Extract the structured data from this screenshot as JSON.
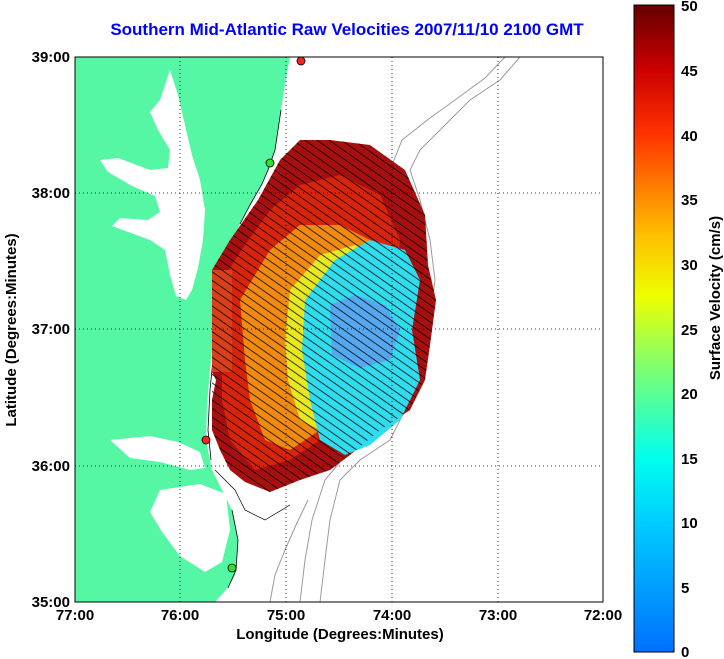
{
  "title": "Southern Mid-Atlantic Raw Velocities 2007/11/10 2100 GMT",
  "x_axis": {
    "label": "Longitude (Degrees:Minutes)",
    "ticks": [
      "77:00",
      "76:00",
      "75:00",
      "74:00",
      "73:00",
      "72:00"
    ]
  },
  "y_axis": {
    "label": "Latitude (Degrees:Minutes)",
    "ticks": [
      "39:00",
      "38:00",
      "37:00",
      "36:00",
      "35:00"
    ]
  },
  "colorbar": {
    "label": "Surface Velocity (cm/s)",
    "ticks": [
      "50",
      "45",
      "40",
      "35",
      "30",
      "25",
      "20",
      "15",
      "10",
      "5",
      "0"
    ]
  },
  "colors": {
    "land": "#55f7a5",
    "ocean": "#ffffff",
    "title": "#0000ff",
    "bathymetry": "#9a9a9a"
  }
}
